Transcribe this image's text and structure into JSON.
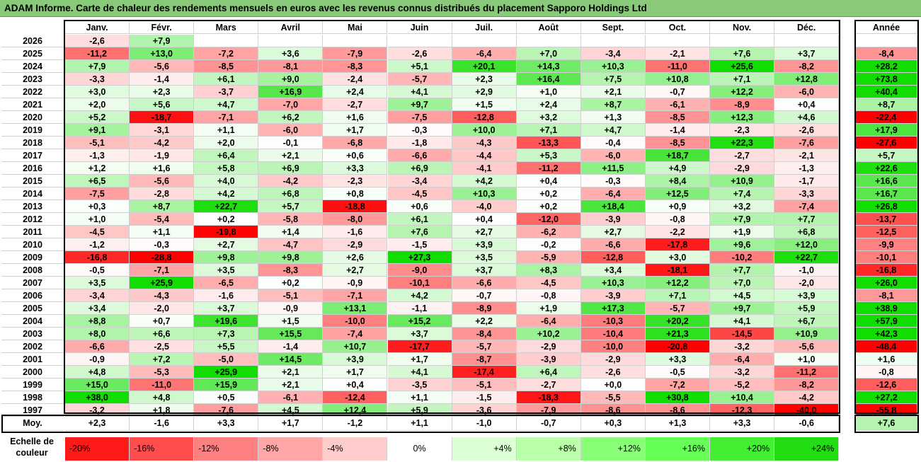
{
  "title": "ADAM Informe. Carte de chaleur des rendements mensuels en euros avec les revenus connus distribués du placement Sapporo Holdings Ltd",
  "scale_label": "Echelle de couleur",
  "chart_data": {
    "type": "heatmap",
    "title": "ADAM Informe. Carte de chaleur des rendements mensuels en euros avec les revenus connus distribués du placement Sapporo Holdings Ltd",
    "months": [
      "Janv.",
      "Févr.",
      "Mars",
      "Avril",
      "Mai",
      "Juin",
      "Juil.",
      "Août",
      "Sept.",
      "Oct.",
      "Nov.",
      "Déc."
    ],
    "year_header": "Année",
    "avg_label": "Moy.",
    "rows": [
      {
        "year": "2026",
        "values": [
          -2.6,
          7.9,
          null,
          null,
          null,
          null,
          null,
          null,
          null,
          null,
          null,
          null
        ],
        "annual": null
      },
      {
        "year": "2025",
        "values": [
          -11.2,
          13.0,
          -7.2,
          3.6,
          -7.9,
          -2.6,
          -6.4,
          7.0,
          -3.4,
          -2.1,
          7.6,
          3.7
        ],
        "annual": -8.4
      },
      {
        "year": "2024",
        "values": [
          7.9,
          -5.6,
          -8.5,
          -8.1,
          -8.3,
          5.1,
          20.1,
          14.3,
          10.3,
          -11.0,
          25.6,
          -8.2
        ],
        "annual": 28.2
      },
      {
        "year": "2023",
        "values": [
          -3.3,
          -1.4,
          6.1,
          9.0,
          -2.4,
          -5.7,
          2.3,
          16.4,
          7.5,
          10.8,
          7.1,
          12.8
        ],
        "annual": 73.8
      },
      {
        "year": "2022",
        "values": [
          3.0,
          2.3,
          -3.7,
          16.9,
          2.4,
          4.1,
          2.9,
          1.0,
          2.1,
          -0.7,
          12.2,
          -6.0
        ],
        "annual": 40.4
      },
      {
        "year": "2021",
        "values": [
          2.0,
          5.6,
          4.7,
          -7.0,
          -2.7,
          9.7,
          1.5,
          2.4,
          8.7,
          -6.1,
          -8.9,
          0.4
        ],
        "annual": 8.7
      },
      {
        "year": "2020",
        "values": [
          5.2,
          -18.7,
          -7.1,
          6.2,
          1.6,
          -7.5,
          -12.8,
          3.2,
          1.3,
          -8.5,
          12.3,
          4.6
        ],
        "annual": -22.4
      },
      {
        "year": "2019",
        "values": [
          9.1,
          -3.1,
          1.1,
          -6.0,
          1.7,
          -0.3,
          10.0,
          7.1,
          4.7,
          -1.4,
          -2.3,
          -2.6
        ],
        "annual": 17.9
      },
      {
        "year": "2018",
        "values": [
          -5.1,
          -4.2,
          2.0,
          -0.1,
          -6.8,
          -1.8,
          -4.3,
          -13.3,
          -0.4,
          -8.5,
          22.3,
          -7.6
        ],
        "annual": -27.6
      },
      {
        "year": "2017",
        "values": [
          -1.3,
          -1.9,
          6.4,
          2.1,
          0.6,
          -6.6,
          -4.4,
          5.3,
          -6.0,
          18.7,
          -2.7,
          -2.1
        ],
        "annual": 5.7
      },
      {
        "year": "2016",
        "values": [
          1.2,
          1.6,
          5.8,
          6.9,
          3.3,
          6.9,
          -4.1,
          -11.2,
          11.5,
          4.9,
          -2.9,
          -1.3
        ],
        "annual": 22.6
      },
      {
        "year": "2015",
        "values": [
          6.5,
          -5.6,
          4.0,
          -4.2,
          -2.3,
          -3.4,
          4.2,
          0.4,
          -0.3,
          8.4,
          10.9,
          -1.7
        ],
        "annual": 16.6
      },
      {
        "year": "2014",
        "values": [
          -7.5,
          -2.8,
          4.2,
          6.8,
          0.8,
          -4.5,
          10.3,
          0.2,
          -6.4,
          12.5,
          7.4,
          -3.3
        ],
        "annual": 16.7
      },
      {
        "year": "2013",
        "values": [
          0.3,
          8.7,
          22.7,
          5.7,
          -18.8,
          0.6,
          -4.0,
          0.2,
          18.4,
          0.9,
          3.2,
          -7.4
        ],
        "annual": 26.8
      },
      {
        "year": "2012",
        "values": [
          1.0,
          -5.4,
          0.2,
          -5.8,
          -8.0,
          6.1,
          0.4,
          -12.0,
          -3.9,
          -0.8,
          7.9,
          7.7
        ],
        "annual": -13.7
      },
      {
        "year": "2011",
        "values": [
          -4.5,
          1.1,
          -19.8,
          1.4,
          -1.6,
          7.6,
          2.7,
          -6.2,
          2.7,
          -2.2,
          1.9,
          6.8
        ],
        "annual": -12.5
      },
      {
        "year": "2010",
        "values": [
          -1.2,
          -0.3,
          2.7,
          -4.7,
          -2.9,
          -1.5,
          3.9,
          -0.2,
          -6.6,
          -17.8,
          9.6,
          12.0
        ],
        "annual": -9.9
      },
      {
        "year": "2009",
        "values": [
          -16.8,
          -28.8,
          9.8,
          9.8,
          2.6,
          27.3,
          3.5,
          -5.9,
          -12.8,
          3.0,
          -10.2,
          22.7
        ],
        "annual": -10.1
      },
      {
        "year": "2008",
        "values": [
          -0.5,
          -7.1,
          3.5,
          -8.3,
          2.7,
          -9.0,
          3.7,
          8.3,
          3.4,
          -18.1,
          7.7,
          -1.0
        ],
        "annual": -16.8
      },
      {
        "year": "2007",
        "values": [
          3.5,
          25.9,
          -6.5,
          0.2,
          -0.9,
          -10.1,
          -6.6,
          -4.5,
          10.3,
          12.2,
          7.0,
          -2.0
        ],
        "annual": 26.0
      },
      {
        "year": "2006",
        "values": [
          -3.4,
          -4.3,
          -1.6,
          -5.1,
          -7.1,
          4.2,
          -0.7,
          -0.8,
          -3.9,
          7.1,
          4.5,
          3.9
        ],
        "annual": -8.1
      },
      {
        "year": "2005",
        "values": [
          3.4,
          -2.0,
          3.7,
          -0.9,
          13.1,
          -1.1,
          -8.9,
          1.9,
          17.3,
          -5.7,
          9.7,
          5.9
        ],
        "annual": 38.9
      },
      {
        "year": "2004",
        "values": [
          8.8,
          0.7,
          19.6,
          1.5,
          -10.0,
          15.2,
          2.2,
          -6.4,
          -10.3,
          20.2,
          4.1,
          6.7
        ],
        "annual": 57.9
      },
      {
        "year": "2003",
        "values": [
          8.0,
          6.6,
          7.3,
          15.5,
          -7.4,
          3.7,
          -8.4,
          10.2,
          -10.4,
          21.3,
          -14.5,
          10.9
        ],
        "annual": 42.3
      },
      {
        "year": "2002",
        "values": [
          -6.6,
          -2.5,
          5.5,
          -1.4,
          10.7,
          -17.7,
          -5.7,
          -2.9,
          -10.0,
          -20.8,
          -3.2,
          -5.6
        ],
        "annual": -48.4
      },
      {
        "year": "2001",
        "values": [
          -0.9,
          7.2,
          -5.0,
          14.5,
          3.9,
          1.7,
          -8.7,
          -3.9,
          -2.9,
          3.3,
          -6.4,
          1.0
        ],
        "annual": 1.6
      },
      {
        "year": "2000",
        "values": [
          4.8,
          -5.3,
          25.9,
          2.1,
          1.7,
          4.1,
          -17.4,
          6.4,
          -2.6,
          -0.5,
          -3.2,
          -11.2
        ],
        "annual": -0.8
      },
      {
        "year": "1999",
        "values": [
          15.0,
          -11.0,
          15.9,
          2.1,
          0.4,
          -3.5,
          -5.1,
          -2.7,
          0.0,
          -7.2,
          -5.2,
          -8.2
        ],
        "annual": -12.6
      },
      {
        "year": "1998",
        "values": [
          38.0,
          4.8,
          0.5,
          -6.1,
          -12.4,
          1.1,
          -1.5,
          -18.3,
          -5.5,
          30.8,
          10.4,
          -4.2
        ],
        "annual": 27.2
      },
      {
        "year": "1997",
        "values": [
          -3.2,
          1.8,
          -7.6,
          4.5,
          12.4,
          5.9,
          -3.6,
          -7.9,
          -8.6,
          -8.6,
          -12.3,
          -40.0
        ],
        "annual": -55.8
      }
    ],
    "averages": [
      2.3,
      -1.6,
      3.3,
      1.7,
      -1.2,
      1.1,
      -1.0,
      -0.7,
      0.3,
      1.3,
      3.3,
      -0.6
    ],
    "average_annual": 7.6,
    "color_scale": [
      {
        "label": "-20%",
        "value": -20,
        "color": "#ff1a1a"
      },
      {
        "label": "-16%",
        "value": -16,
        "color": "#ff4d4d"
      },
      {
        "label": "-12%",
        "value": -12,
        "color": "#ff8080"
      },
      {
        "label": "-8%",
        "value": -8,
        "color": "#ffa6a6"
      },
      {
        "label": "-4%",
        "value": -4,
        "color": "#ffcccc"
      },
      {
        "label": "0%",
        "value": 0,
        "color": "#ffffff"
      },
      {
        "label": "+4%",
        "value": 4,
        "color": "#ddffd6"
      },
      {
        "label": "+8%",
        "value": 8,
        "color": "#bbffaa"
      },
      {
        "label": "+12%",
        "value": 12,
        "color": "#88ff77"
      },
      {
        "label": "+16%",
        "value": 16,
        "color": "#66ff55"
      },
      {
        "label": "+20%",
        "value": 20,
        "color": "#44ee33"
      },
      {
        "label": "+24%",
        "value": 24,
        "color": "#22dd11"
      }
    ],
    "colors": {
      "negative_max": "#ff0000",
      "neutral": "#ffffff",
      "positive_max": "#11dd00"
    }
  }
}
